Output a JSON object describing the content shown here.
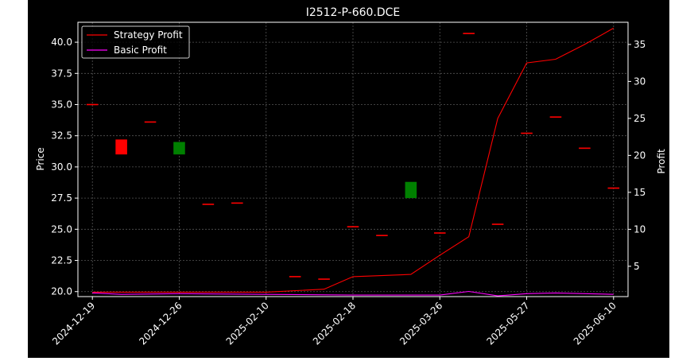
{
  "chart_data": {
    "type": "candlestick+line",
    "title": "I2512-P-660.DCE",
    "xlabel": "",
    "ylabel_left": "Price",
    "ylabel_right": "Profit",
    "x_tick_labels": [
      "2024-12-19",
      "2024-12-26",
      "2025-02-10",
      "2025-02-18",
      "2025-03-26",
      "2025-05-27",
      "2025-06-10"
    ],
    "y_left_ticks": [
      "20.0",
      "22.5",
      "25.0",
      "27.5",
      "30.0",
      "32.5",
      "35.0",
      "37.5",
      "40.0"
    ],
    "y_right_ticks": [
      "5",
      "10",
      "15",
      "20",
      "25",
      "30",
      "35"
    ],
    "ylim_left": [
      19.6,
      41.6
    ],
    "ylim_right": [
      0.9,
      38.0
    ],
    "xlim": [
      -0.5,
      18.5
    ],
    "grid": true,
    "legend": {
      "placement": "upper-left",
      "entries": [
        {
          "label": "Strategy Profit",
          "color": "#ff0000"
        },
        {
          "label": "Basic Profit",
          "color": "#ff00ff"
        }
      ]
    },
    "candles": [
      {
        "x": 0,
        "open": 35.0,
        "close": 35.0,
        "color": "#ff0000"
      },
      {
        "x": 1,
        "open": 32.2,
        "close": 31.0,
        "color": "#ff0000"
      },
      {
        "x": 2,
        "open": 33.6,
        "close": 33.6,
        "color": "#ff0000"
      },
      {
        "x": 3,
        "open": 31.0,
        "close": 32.0,
        "color": "#008000"
      },
      {
        "x": 4,
        "open": 27.0,
        "close": 26.9,
        "color": "#ff0000"
      },
      {
        "x": 5,
        "open": 27.1,
        "close": 27.1,
        "color": "#ff0000"
      },
      {
        "x": 7,
        "open": 21.2,
        "close": 21.2,
        "color": "#ff0000"
      },
      {
        "x": 8,
        "open": 21.0,
        "close": 21.0,
        "color": "#ff0000"
      },
      {
        "x": 9,
        "open": 25.2,
        "close": 25.2,
        "color": "#ff0000"
      },
      {
        "x": 10,
        "open": 24.5,
        "close": 24.5,
        "color": "#ff0000"
      },
      {
        "x": 11,
        "open": 27.5,
        "close": 28.8,
        "color": "#008000"
      },
      {
        "x": 12,
        "open": 24.7,
        "close": 24.7,
        "color": "#ff0000"
      },
      {
        "x": 13,
        "open": 40.7,
        "close": 40.7,
        "color": "#ff0000"
      },
      {
        "x": 14,
        "open": 25.4,
        "close": 25.4,
        "color": "#ff0000"
      },
      {
        "x": 15,
        "open": 32.7,
        "close": 32.7,
        "color": "#ff0000"
      },
      {
        "x": 16,
        "open": 34.0,
        "close": 34.0,
        "color": "#ff0000"
      },
      {
        "x": 17,
        "open": 31.5,
        "close": 31.5,
        "color": "#ff0000"
      },
      {
        "x": 18,
        "open": 28.3,
        "close": 28.3,
        "color": "#ff0000"
      }
    ],
    "series": [
      {
        "name": "Strategy Profit",
        "color": "#ff0000",
        "x": [
          0,
          3,
          6,
          8,
          9,
          11,
          12,
          13,
          14,
          15,
          16,
          17,
          18
        ],
        "values": [
          1.5,
          1.5,
          1.5,
          1.9,
          3.6,
          3.9,
          6.5,
          9.0,
          25.0,
          32.5,
          33.0,
          35.0,
          37.2
        ]
      },
      {
        "name": "Basic Profit",
        "color": "#ff00ff",
        "x": [
          0,
          1,
          3,
          6,
          9,
          12,
          13,
          14,
          15,
          16,
          17,
          18
        ],
        "values": [
          1.4,
          1.2,
          1.3,
          1.2,
          1.1,
          1.1,
          1.6,
          1.0,
          1.3,
          1.4,
          1.3,
          1.2
        ]
      }
    ]
  }
}
